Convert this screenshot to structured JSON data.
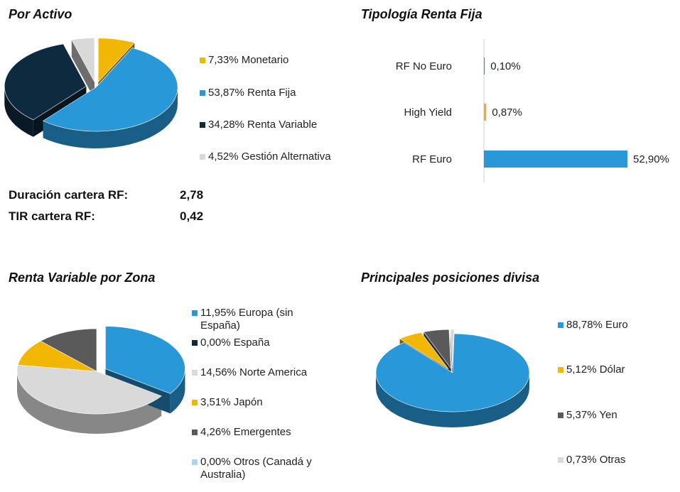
{
  "colors": {
    "cyan": "#2998d9",
    "navy": "#0e2a3e",
    "gold": "#f2b705",
    "lightgray": "#d9d9d9",
    "darkgray": "#5a5a5a",
    "lightblue": "#a8d8ee",
    "orange": "#f6a93b"
  },
  "chart_data": [
    {
      "id": "por-activo",
      "type": "pie",
      "title": "Por Activo",
      "slices": [
        {
          "label": "7,33% Monetario",
          "value": 7.33,
          "color": "#f2b705",
          "explode": true
        },
        {
          "label": "53,87% Renta Fija",
          "value": 53.87,
          "color": "#2998d9",
          "explode": false
        },
        {
          "label": "34,28% Renta Variable",
          "value": 34.28,
          "color": "#0e2a3e",
          "explode": true
        },
        {
          "label": "4,52% Gestión Alternativa",
          "value": 4.52,
          "color": "#d9d9d9",
          "explode": true
        }
      ]
    },
    {
      "id": "tipologia-rf",
      "type": "bar",
      "orientation": "horizontal",
      "title": "Tipología Renta Fija",
      "categories": [
        "RF No Euro",
        "High Yield",
        "RF Euro"
      ],
      "values": [
        0.1,
        0.87,
        52.9
      ],
      "value_labels": [
        "0,10%",
        "0,87%",
        "52,90%"
      ],
      "colors": [
        "#2998d9",
        "#f6a93b",
        "#2998d9"
      ],
      "xlim": [
        0,
        52.9
      ]
    },
    {
      "id": "rv-zona",
      "type": "pie",
      "title": "Renta Variable por Zona",
      "slices": [
        {
          "label": "11,95% Europa (sin España)",
          "value": 11.95,
          "color": "#2998d9",
          "explode": true
        },
        {
          "label": "0,00% España",
          "value": 0.0,
          "color": "#0e2a3e",
          "explode": false
        },
        {
          "label": "14,56% Norte America",
          "value": 14.56,
          "color": "#d9d9d9",
          "explode": false
        },
        {
          "label": "3,51% Japón",
          "value": 3.51,
          "color": "#f2b705",
          "explode": false
        },
        {
          "label": "4,26% Emergentes",
          "value": 4.26,
          "color": "#5a5a5a",
          "explode": false
        },
        {
          "label": "0,00% Otros (Canadá y Australia)",
          "value": 0.0,
          "color": "#a8d8ee",
          "explode": false
        }
      ]
    },
    {
      "id": "divisa",
      "type": "pie",
      "title": "Principales posiciones divisa",
      "slices": [
        {
          "label": "88,78% Euro",
          "value": 88.78,
          "color": "#2998d9",
          "explode": false
        },
        {
          "label": "5,12% Dólar",
          "value": 5.12,
          "color": "#f2b705",
          "explode": true
        },
        {
          "label": "5,37% Yen",
          "value": 5.37,
          "color": "#5a5a5a",
          "explode": true
        },
        {
          "label": "0,73% Otras",
          "value": 0.73,
          "color": "#d9d9d9",
          "explode": true
        }
      ]
    }
  ],
  "stats": {
    "duracion_label": "Duración cartera RF:",
    "duracion_value": "2,78",
    "tir_label": "TIR cartera RF:",
    "tir_value": "0,42"
  }
}
